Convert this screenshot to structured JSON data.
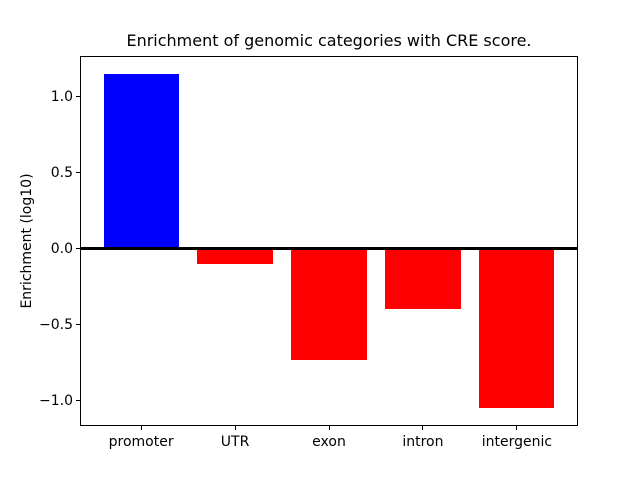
{
  "figure": {
    "background": "#ffffff"
  },
  "chart_data": {
    "type": "bar",
    "title": "Enrichment of genomic categories with CRE score.",
    "xlabel": "",
    "ylabel": "Enrichment (log10)",
    "categories": [
      "promoter",
      "UTR",
      "exon",
      "intron",
      "intergenic"
    ],
    "values": [
      1.15,
      -0.1,
      -0.73,
      -0.4,
      -1.05
    ],
    "bar_colors": [
      "#0000ff",
      "#ff0000",
      "#ff0000",
      "#ff0000",
      "#ff0000"
    ],
    "yticks": [
      1.0,
      0.5,
      0.0,
      -0.5,
      -1.0
    ],
    "ytick_labels": [
      "1.0",
      "0.5",
      "0.0",
      "−0.5",
      "−1.0"
    ],
    "ylim": [
      -1.16,
      1.26
    ],
    "xlim": [
      -0.64,
      4.64
    ],
    "bar_width": 0.8,
    "zero_line": {
      "y": 0.0,
      "color": "#000000"
    },
    "grid": false,
    "legend": null,
    "axis_color": "#000000"
  }
}
